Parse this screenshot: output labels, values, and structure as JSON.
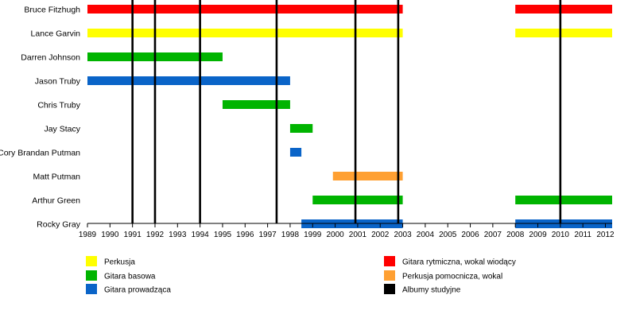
{
  "chart_data": {
    "type": "timeline",
    "xlim": [
      1989,
      2012.3
    ],
    "year_ticks": [
      "1989",
      "1990",
      "1991",
      "1992",
      "1993",
      "1994",
      "1995",
      "1996",
      "1997",
      "1998",
      "1999",
      "2000",
      "2001",
      "2002",
      "2003",
      "2004",
      "2005",
      "2006",
      "2007",
      "2008",
      "2009",
      "2010",
      "2011",
      "2012"
    ],
    "members": [
      {
        "name": "Bruce Fitzhugh",
        "periods": [
          {
            "start": 1989,
            "end": 2003.0,
            "role": "rhythm_vocals"
          },
          {
            "start": 2008.0,
            "end": 2012.3,
            "role": "rhythm_vocals"
          }
        ]
      },
      {
        "name": "Lance Garvin",
        "periods": [
          {
            "start": 1989,
            "end": 2003.0,
            "role": "drums"
          },
          {
            "start": 2008.0,
            "end": 2012.3,
            "role": "drums"
          }
        ]
      },
      {
        "name": "Darren Johnson",
        "periods": [
          {
            "start": 1989,
            "end": 1995.0,
            "role": "bass"
          }
        ]
      },
      {
        "name": "Jason Truby",
        "periods": [
          {
            "start": 1989,
            "end": 1998.0,
            "role": "lead_guitar"
          }
        ]
      },
      {
        "name": "Chris Truby",
        "periods": [
          {
            "start": 1995.0,
            "end": 1998.0,
            "role": "bass"
          }
        ]
      },
      {
        "name": "Jay Stacy",
        "periods": [
          {
            "start": 1998.0,
            "end": 1999.0,
            "role": "bass"
          }
        ]
      },
      {
        "name": "Cory Brandan Putman",
        "periods": [
          {
            "start": 1998.0,
            "end": 1998.5,
            "role": "lead_guitar"
          }
        ]
      },
      {
        "name": "Matt Putman",
        "periods": [
          {
            "start": 1999.9,
            "end": 2003.0,
            "role": "perc_vocals"
          }
        ]
      },
      {
        "name": "Arthur Green",
        "periods": [
          {
            "start": 1999.0,
            "end": 2003.0,
            "role": "bass"
          },
          {
            "start": 2008.0,
            "end": 2012.3,
            "role": "bass"
          }
        ]
      },
      {
        "name": "Rocky Gray",
        "periods": [
          {
            "start": 1998.5,
            "end": 2003.0,
            "role": "lead_guitar"
          },
          {
            "start": 2008.0,
            "end": 2012.3,
            "role": "lead_guitar"
          }
        ]
      }
    ],
    "albums": [
      1991.0,
      1992.0,
      1994.0,
      1997.4,
      2000.9,
      2002.8,
      2010.0
    ],
    "roles": {
      "drums": {
        "label": "Perkusja",
        "color": "#ffff00"
      },
      "bass": {
        "label": "Gitara basowa",
        "color": "#00b400"
      },
      "lead_guitar": {
        "label": "Gitara prowadząca",
        "color": "#0a64c8"
      },
      "rhythm_vocals": {
        "label": "Gitara rytmiczna, wokal wiodący",
        "color": "#ff0000"
      },
      "perc_vocals": {
        "label": "Perkusja pomocnicza, wokal",
        "color": "#ffa032"
      },
      "albums": {
        "label": "Albumy studyjne",
        "color": "#000000"
      }
    },
    "legend": [
      "drums",
      "bass",
      "lead_guitar",
      "rhythm_vocals",
      "perc_vocals",
      "albums"
    ]
  }
}
